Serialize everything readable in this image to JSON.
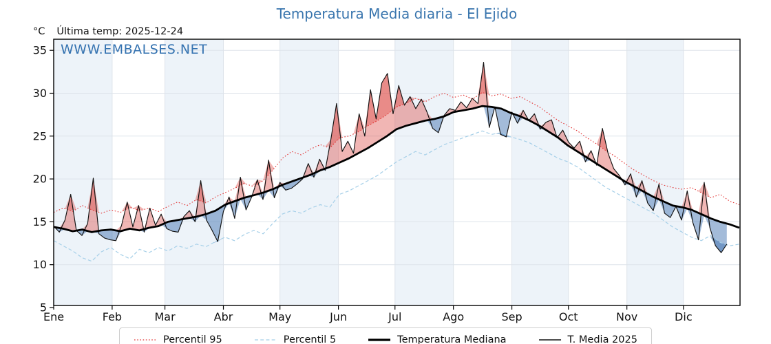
{
  "header": {
    "unit": "°C",
    "last_temp": "Última temp: 2025-12-24"
  },
  "watermark": {
    "text": "WWW.EMBALSES.NET",
    "color": "#3573b1"
  },
  "chart_data": {
    "type": "line",
    "title": "Temperatura Media diaria - El Ejido",
    "title_color": "#3a76ae",
    "ylabel": "°C",
    "ylim": [
      5,
      36.3
    ],
    "yticks": [
      35,
      30,
      25,
      20,
      15,
      10,
      5
    ],
    "grid": true,
    "grid_color": "#dde3ea",
    "band_color": "#edf3f9",
    "months": {
      "labels": [
        "Ene",
        "Feb",
        "Mar",
        "Abr",
        "May",
        "Jun",
        "Jul",
        "Ago",
        "Sep",
        "Oct",
        "Nov",
        "Dic"
      ],
      "start_day": [
        1,
        32,
        60,
        91,
        121,
        152,
        182,
        213,
        244,
        274,
        305,
        335
      ],
      "shaded": [
        true,
        false,
        true,
        false,
        true,
        false,
        true,
        false,
        true,
        false,
        true,
        false
      ]
    },
    "legend_position": "bottom",
    "fills": {
      "above_median_color": "rgba(222,82,76,0.42)",
      "below_median_color": "rgba(62,112,176,0.48)",
      "note": "fill between T. Media 2025 and Temperatura Mediana; doubled (darker) beyond Percentil 95 / Percentil 5"
    },
    "series": [
      {
        "name": "Percentil 95",
        "style": "dotted",
        "color": "#e23333",
        "width": 1.1,
        "day_start": 1,
        "day_step": 5.05,
        "values": [
          16.1,
          16.6,
          16.2,
          16.9,
          16.4,
          16.0,
          16.4,
          16.1,
          16.7,
          16.3,
          16.6,
          16.2,
          16.8,
          17.3,
          16.9,
          17.6,
          17.2,
          17.9,
          18.4,
          18.9,
          19.5,
          19.1,
          19.8,
          21.0,
          22.4,
          23.2,
          22.8,
          23.5,
          24.0,
          23.6,
          24.8,
          25.0,
          25.5,
          26.2,
          26.8,
          27.5,
          28.4,
          28.8,
          29.4,
          29.0,
          29.6,
          30.0,
          29.5,
          29.8,
          29.3,
          30.1,
          29.7,
          29.9,
          29.4,
          29.6,
          29.0,
          28.4,
          27.6,
          26.8,
          26.2,
          25.6,
          24.8,
          24.1,
          23.3,
          22.6,
          21.8,
          21.0,
          20.4,
          19.8,
          19.3,
          19.0,
          18.8,
          19.0,
          18.4,
          17.8,
          18.2,
          17.4,
          17.0
        ]
      },
      {
        "name": "Percentil 5",
        "style": "dashed",
        "color": "#a5cfe8",
        "width": 1.2,
        "day_start": 1,
        "day_step": 5.05,
        "values": [
          12.8,
          12.2,
          11.6,
          10.8,
          10.4,
          11.5,
          12.0,
          11.2,
          10.7,
          11.8,
          11.4,
          12.0,
          11.6,
          12.2,
          11.9,
          12.4,
          12.1,
          12.7,
          13.2,
          12.8,
          13.5,
          14.0,
          13.6,
          14.8,
          15.9,
          16.3,
          16.0,
          16.6,
          17.0,
          16.7,
          18.2,
          18.6,
          19.2,
          19.8,
          20.4,
          21.2,
          22.0,
          22.6,
          23.2,
          22.8,
          23.4,
          24.0,
          24.4,
          24.8,
          25.2,
          25.6,
          25.2,
          25.4,
          24.9,
          24.6,
          24.2,
          23.6,
          23.0,
          22.4,
          22.0,
          21.4,
          20.6,
          19.8,
          19.0,
          18.4,
          17.8,
          17.2,
          16.6,
          16.0,
          15.2,
          14.4,
          13.8,
          13.2,
          12.8,
          13.4,
          12.6,
          12.2,
          12.4
        ]
      },
      {
        "name": "Temperatura Mediana",
        "style": "solid-thick",
        "color": "#000000",
        "width": 2.8,
        "day_start": 1,
        "day_step": 5.05,
        "values": [
          14.4,
          14.2,
          13.9,
          14.1,
          13.8,
          14.0,
          14.1,
          13.9,
          14.2,
          14.0,
          14.3,
          14.5,
          15.0,
          15.2,
          15.4,
          15.6,
          15.9,
          16.3,
          17.0,
          17.4,
          17.8,
          18.1,
          18.4,
          18.8,
          19.3,
          19.7,
          20.1,
          20.5,
          21.0,
          21.4,
          21.9,
          22.4,
          23.0,
          23.6,
          24.3,
          25.0,
          25.8,
          26.2,
          26.5,
          26.8,
          27.0,
          27.3,
          27.8,
          28.0,
          28.2,
          28.5,
          28.4,
          28.2,
          27.7,
          27.3,
          26.8,
          26.2,
          25.5,
          24.8,
          23.9,
          23.2,
          22.5,
          21.8,
          21.1,
          20.4,
          19.7,
          19.1,
          18.5,
          17.9,
          17.4,
          16.9,
          16.7,
          16.4,
          15.9,
          15.4,
          15.0,
          14.7,
          14.3
        ]
      },
      {
        "name": "T. Media 2025",
        "style": "solid-thin",
        "color": "#111111",
        "width": 1.15,
        "day_start": 1,
        "day_step": 3,
        "values": [
          14.5,
          13.8,
          15.2,
          18.2,
          14.0,
          13.4,
          14.8,
          20.1,
          13.6,
          13.1,
          12.9,
          12.8,
          14.6,
          17.3,
          14.4,
          16.9,
          13.8,
          16.6,
          14.6,
          15.9,
          14.2,
          13.9,
          13.8,
          15.6,
          16.3,
          15.0,
          19.8,
          15.2,
          14.0,
          12.7,
          16.2,
          17.9,
          15.4,
          20.2,
          16.4,
          17.9,
          19.9,
          17.6,
          22.2,
          17.8,
          19.6,
          18.7,
          18.9,
          19.4,
          20.0,
          21.8,
          20.2,
          22.3,
          21.0,
          24.6,
          28.8,
          23.2,
          24.4,
          23.0,
          27.6,
          25.0,
          30.4,
          27.0,
          31.2,
          32.3,
          27.6,
          30.9,
          28.6,
          29.6,
          28.2,
          29.3,
          27.8,
          25.9,
          25.4,
          27.4,
          28.2,
          28.0,
          29.0,
          28.3,
          29.4,
          28.8,
          33.6,
          26.0,
          28.4,
          25.2,
          24.9,
          27.8,
          26.5,
          28.0,
          26.8,
          27.6,
          25.8,
          26.6,
          26.9,
          24.8,
          25.7,
          24.3,
          23.6,
          24.4,
          22.0,
          23.3,
          21.6,
          25.9,
          23.0,
          21.2,
          20.4,
          19.3,
          20.6,
          17.9,
          19.8,
          17.2,
          16.3,
          19.4,
          16.0,
          15.5,
          16.8,
          15.2,
          18.6,
          14.9,
          12.9,
          19.6,
          14.3,
          12.2,
          11.4,
          12.4
        ]
      }
    ]
  }
}
